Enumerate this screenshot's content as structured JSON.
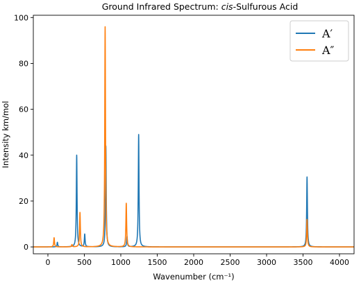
{
  "chart_data": {
    "type": "line",
    "title": {
      "prefix": "Ground Infrared Spectrum: ",
      "italic": "cis",
      "suffix": "-Sulfurous Acid"
    },
    "xlabel": "Wavenumber (cm⁻¹)",
    "ylabel": "Intensity km/mol",
    "xlim": [
      -200,
      4200
    ],
    "ylim": [
      -3,
      101
    ],
    "xticks": [
      0,
      500,
      1000,
      1500,
      2000,
      2500,
      3000,
      3500,
      4000
    ],
    "yticks": [
      0,
      20,
      40,
      60,
      80,
      100
    ],
    "grid": false,
    "legend_position": "top-right",
    "peak_width": 6,
    "series": [
      {
        "name": "A′",
        "color": "#1f77b4",
        "peaks": [
          {
            "x": 130,
            "y": 2
          },
          {
            "x": 395,
            "y": 40
          },
          {
            "x": 505,
            "y": 5.5
          },
          {
            "x": 795,
            "y": 44
          },
          {
            "x": 1085,
            "y": 4.5
          },
          {
            "x": 1245,
            "y": 49
          },
          {
            "x": 3555,
            "y": 30.5
          }
        ]
      },
      {
        "name": "A″",
        "color": "#ff7f0e",
        "peaks": [
          {
            "x": 85,
            "y": 4
          },
          {
            "x": 330,
            "y": 1
          },
          {
            "x": 440,
            "y": 15
          },
          {
            "x": 785,
            "y": 96
          },
          {
            "x": 1075,
            "y": 19
          },
          {
            "x": 3555,
            "y": 12
          }
        ]
      }
    ]
  }
}
